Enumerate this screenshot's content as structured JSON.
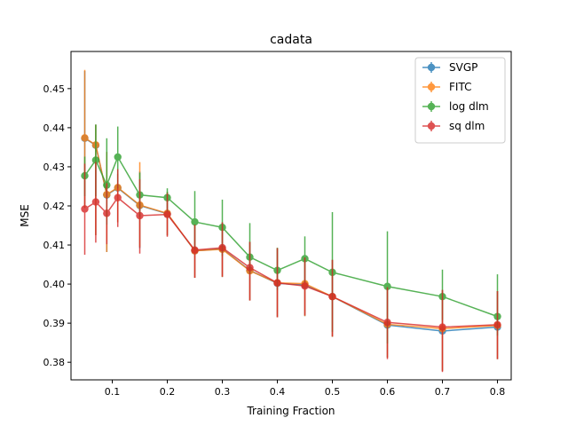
{
  "chart_data": {
    "type": "line",
    "title": "cadata",
    "xlabel": "Training Fraction",
    "ylabel": "MSE",
    "xlim": [
      0.025,
      0.825
    ],
    "ylim": [
      0.3755,
      0.4595
    ],
    "xticks": [
      0.1,
      0.2,
      0.3,
      0.4,
      0.5,
      0.6,
      0.7,
      0.8
    ],
    "xtick_labels": [
      "0.1",
      "0.2",
      "0.3",
      "0.4",
      "0.5",
      "0.6",
      "0.7",
      "0.8"
    ],
    "yticks": [
      0.38,
      0.39,
      0.4,
      0.41,
      0.42,
      0.43,
      0.44,
      0.45
    ],
    "ytick_labels": [
      "0.38",
      "0.39",
      "0.40",
      "0.41",
      "0.42",
      "0.43",
      "0.44",
      "0.45"
    ],
    "grid": false,
    "legend_position": "top-right",
    "x": [
      0.05,
      0.07,
      0.09,
      0.11,
      0.15,
      0.2,
      0.25,
      0.3,
      0.35,
      0.4,
      0.45,
      0.5,
      0.6,
      0.7,
      0.8
    ],
    "series": [
      {
        "name": "SVGP",
        "color": "#1f77b4",
        "values": [
          0.4373,
          0.4355,
          0.4228,
          0.4246,
          0.4201,
          0.418,
          0.4085,
          0.409,
          0.4035,
          0.4002,
          0.3998,
          0.3968,
          0.3895,
          0.388,
          0.389
        ],
        "err_low": [
          0.4195,
          0.4125,
          0.4082,
          0.4158,
          0.4092,
          0.4124,
          0.4016,
          0.4018,
          0.3958,
          0.3915,
          0.3918,
          0.3865,
          0.3812,
          0.3778,
          0.3808
        ],
        "err_high": [
          0.4545,
          0.4408,
          0.4338,
          0.4282,
          0.4288,
          0.4236,
          0.4152,
          0.4158,
          0.4108,
          0.4092,
          0.4068,
          0.4062,
          0.3992,
          0.3985,
          0.3982
        ]
      },
      {
        "name": "FITC",
        "color": "#ff7f0e",
        "values": [
          0.4374,
          0.4356,
          0.4229,
          0.4247,
          0.4202,
          0.4181,
          0.4085,
          0.4089,
          0.4034,
          0.4003,
          0.4001,
          0.3968,
          0.3897,
          0.3886,
          0.3894
        ],
        "err_low": [
          0.4195,
          0.4125,
          0.4082,
          0.4158,
          0.4095,
          0.4124,
          0.4016,
          0.4018,
          0.3958,
          0.3915,
          0.3918,
          0.3865,
          0.3812,
          0.3778,
          0.3808
        ],
        "err_high": [
          0.4548,
          0.4408,
          0.4338,
          0.4282,
          0.4312,
          0.4236,
          0.4152,
          0.4158,
          0.4108,
          0.4092,
          0.4068,
          0.4062,
          0.3992,
          0.3985,
          0.3982
        ]
      },
      {
        "name": "log dlm",
        "color": "#2ca02c",
        "values": [
          0.4277,
          0.4317,
          0.4253,
          0.4325,
          0.4228,
          0.4221,
          0.4159,
          0.4145,
          0.4069,
          0.4035,
          0.4065,
          0.403,
          0.3994,
          0.3968,
          0.3917
        ],
        "err_low": [
          0.4225,
          0.4225,
          0.4152,
          0.4245,
          0.4172,
          0.4185,
          0.4088,
          0.4072,
          0.4025,
          0.3985,
          0.4005,
          0.3878,
          0.3848,
          0.3908,
          0.3868
        ],
        "err_high": [
          0.4326,
          0.4408,
          0.4373,
          0.4403,
          0.4285,
          0.4245,
          0.4238,
          0.4216,
          0.4156,
          0.4093,
          0.4122,
          0.4184,
          0.4135,
          0.4037,
          0.4025
        ]
      },
      {
        "name": "sq dlm",
        "color": "#d62728",
        "values": [
          0.4192,
          0.421,
          0.4181,
          0.4221,
          0.4175,
          0.4178,
          0.4087,
          0.4093,
          0.4042,
          0.4003,
          0.3995,
          0.3968,
          0.3902,
          0.389,
          0.3896
        ],
        "err_low": [
          0.4075,
          0.4106,
          0.4102,
          0.4146,
          0.4078,
          0.4121,
          0.4016,
          0.4019,
          0.3958,
          0.3915,
          0.392,
          0.3866,
          0.3808,
          0.3775,
          0.3808
        ],
        "err_high": [
          0.4308,
          0.4312,
          0.4258,
          0.4294,
          0.4268,
          0.4232,
          0.4152,
          0.4158,
          0.4108,
          0.4092,
          0.4068,
          0.4062,
          0.3992,
          0.3985,
          0.3982
        ]
      }
    ]
  }
}
